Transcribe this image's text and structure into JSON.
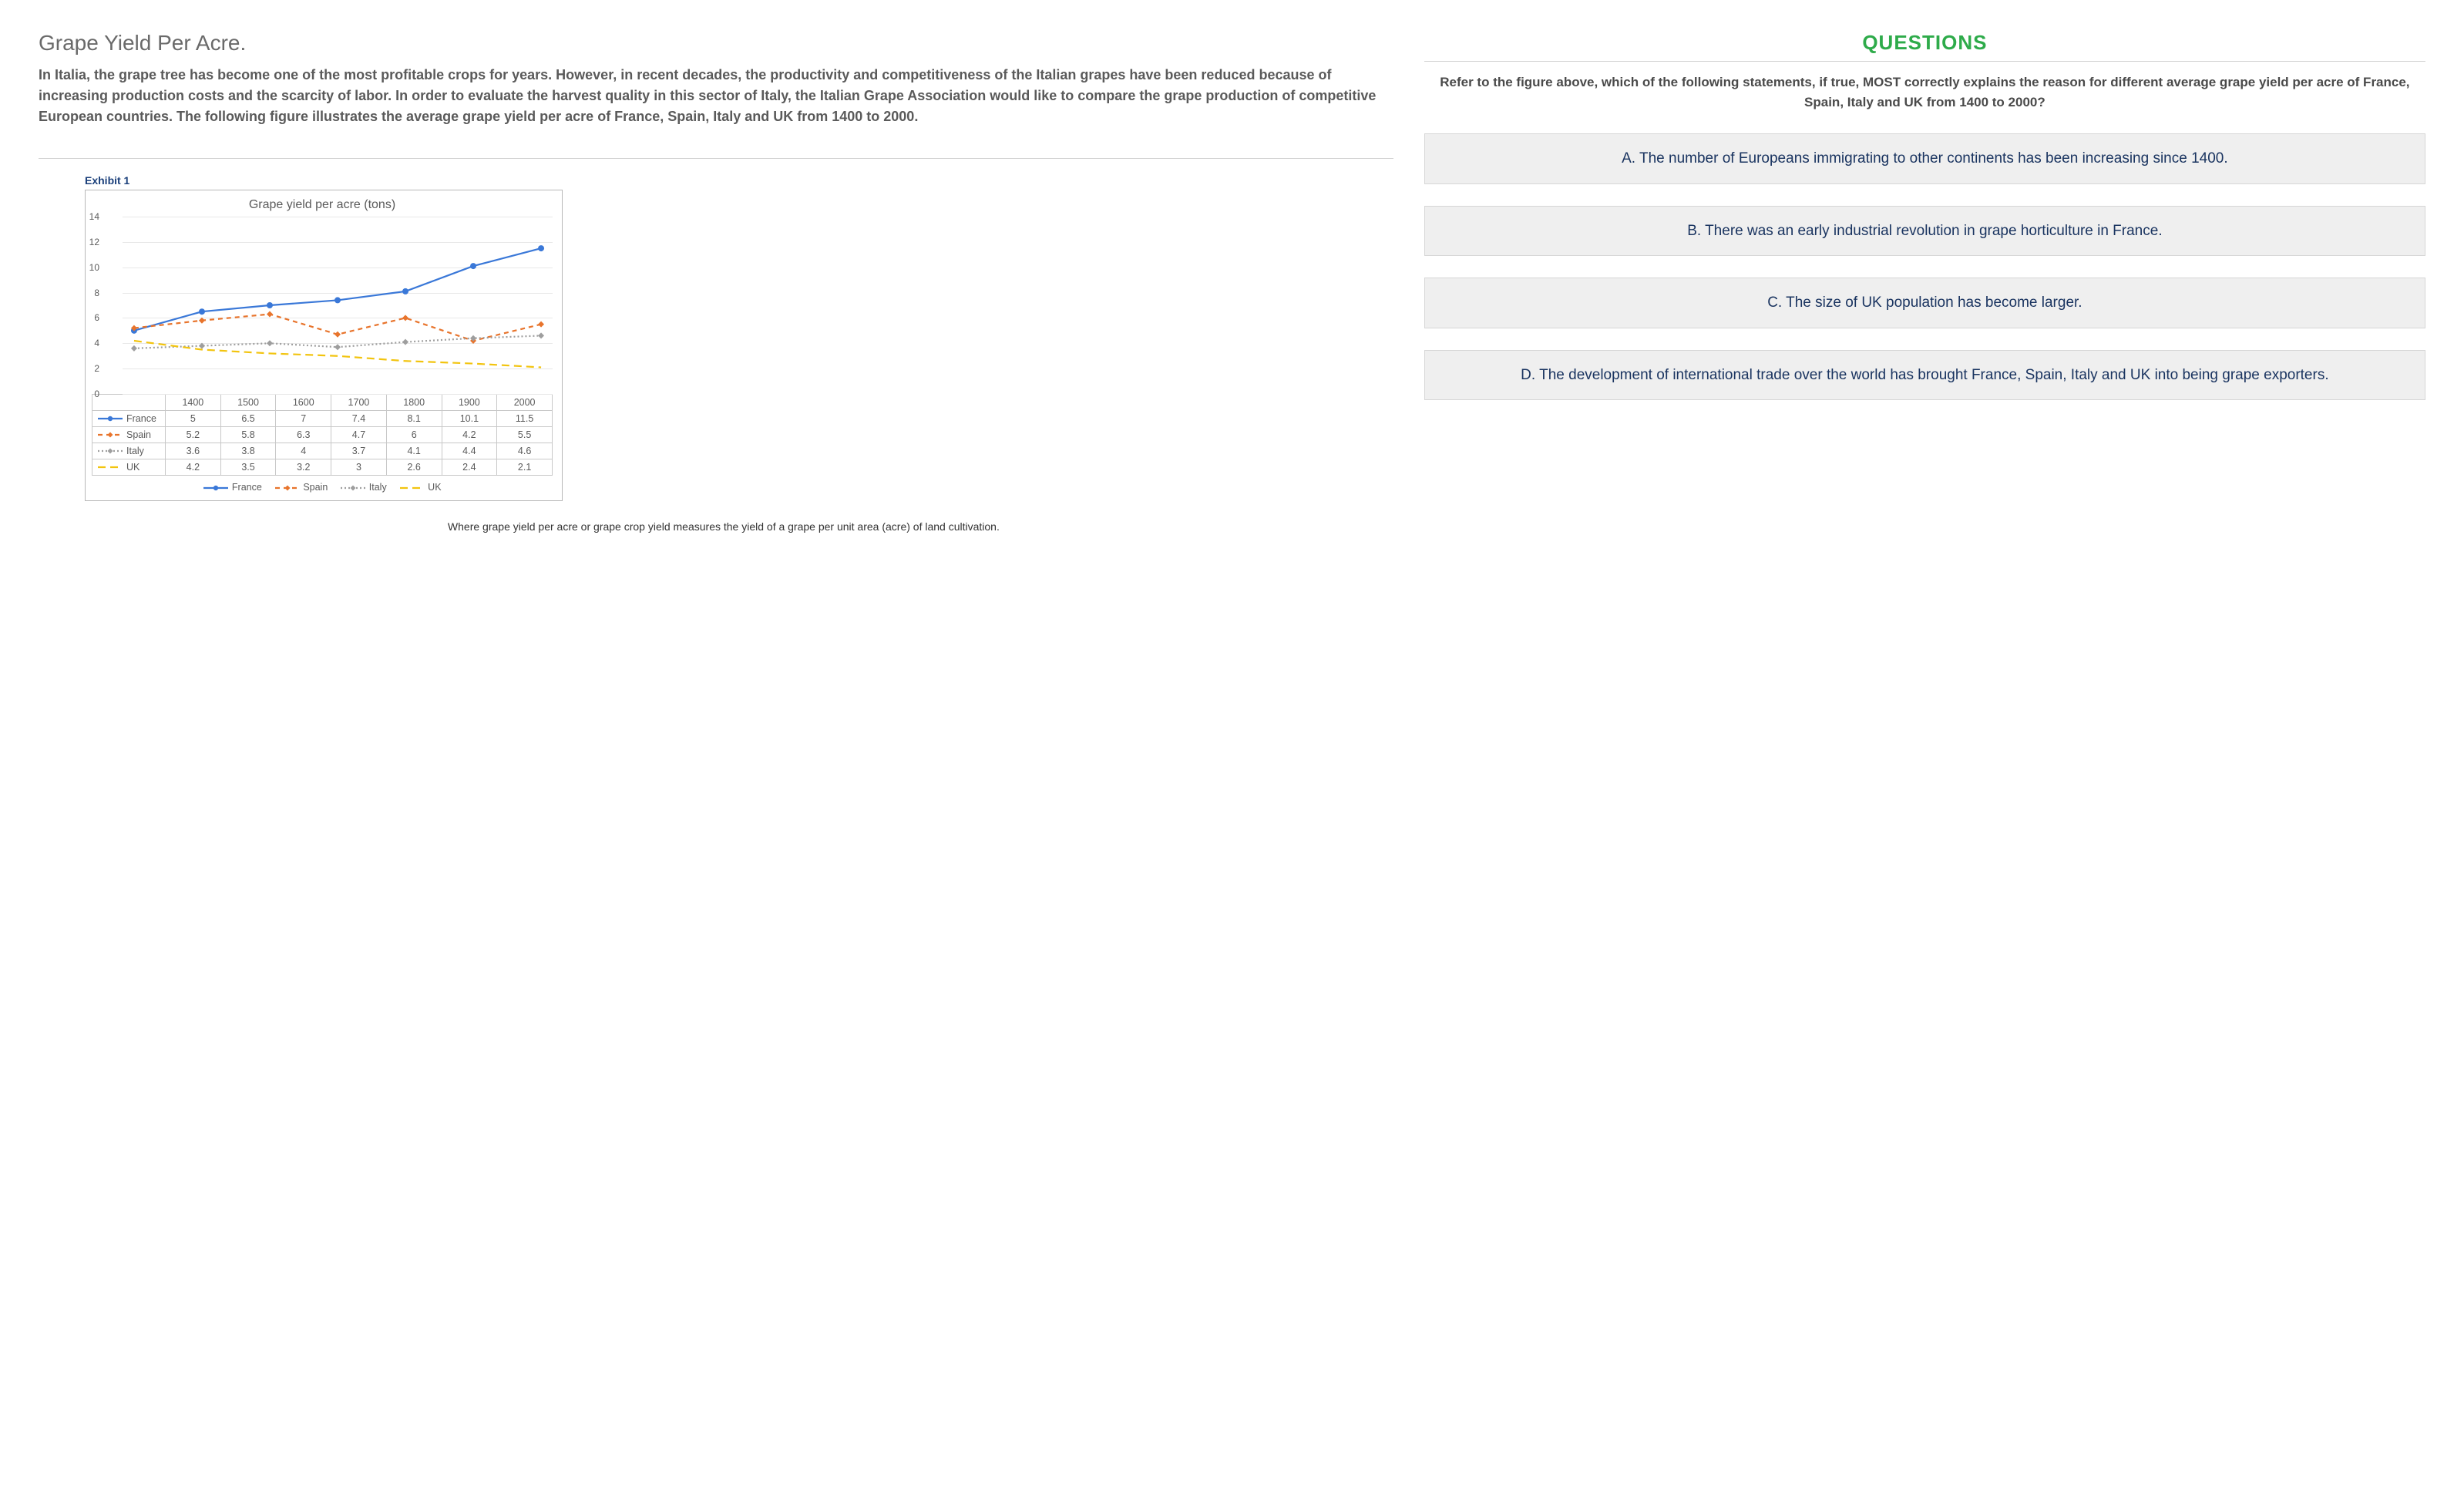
{
  "left": {
    "title": "Grape Yield Per Acre.",
    "intro": "In Italia, the grape tree has become one of the most profitable crops for years. However, in recent decades, the productivity and competitiveness of the Italian grapes have been reduced because of increasing production costs and the scarcity of labor. In order to evaluate the harvest quality in this sector of Italy, the Italian Grape Association would like to compare the grape production of competitive European countries. The following figure illustrates the average grape yield per acre of France, Spain, Italy and UK from 1400 to 2000.",
    "exhibit_label": "Exhibit 1",
    "caption": "Where grape yield per acre or grape crop yield measures the yield of a grape per unit area (acre) of land cultivation."
  },
  "chart": {
    "type": "line",
    "title": "Grape yield per acre (tons)",
    "categories": [
      "1400",
      "1500",
      "1600",
      "1700",
      "1800",
      "1900",
      "2000"
    ],
    "ylim": [
      0,
      14
    ],
    "ytick_step": 2,
    "grid_color": "#e8e8e8",
    "background_color": "#ffffff",
    "series": [
      {
        "name": "France",
        "color": "#3a78d8",
        "dash": "none",
        "marker": "circle",
        "values": [
          5,
          6.5,
          7,
          7.4,
          8.1,
          10.1,
          11.5
        ]
      },
      {
        "name": "Spain",
        "color": "#e8742c",
        "dash": "6,5",
        "marker": "diamond",
        "values": [
          5.2,
          5.8,
          6.3,
          4.7,
          6,
          4.2,
          5.5
        ]
      },
      {
        "name": "Italy",
        "color": "#9e9e9e",
        "dash": "2,3",
        "marker": "diamond",
        "values": [
          3.6,
          3.8,
          4,
          3.7,
          4.1,
          4.4,
          4.6
        ]
      },
      {
        "name": "UK",
        "color": "#f2c40f",
        "dash": "10,6",
        "marker": "none",
        "values": [
          4.2,
          3.5,
          3.2,
          3,
          2.6,
          2.4,
          2.1
        ]
      }
    ],
    "line_width": 2.2,
    "marker_radius": 4
  },
  "questions": {
    "heading": "QUESTIONS",
    "prompt": "Refer to the figure above, which of the following statements, if true, MOST correctly explains the reason for different average grape yield per acre of France, Spain, Italy and UK from 1400 to 2000?",
    "answers": [
      "A. The number of Europeans immigrating to other continents has been increasing since 1400.",
      "B. There was an early industrial revolution in grape horticulture in France.",
      "C. The size of UK population has become larger.",
      "D. The development of international trade over the world has brought France, Spain, Italy and UK into being grape exporters."
    ]
  }
}
